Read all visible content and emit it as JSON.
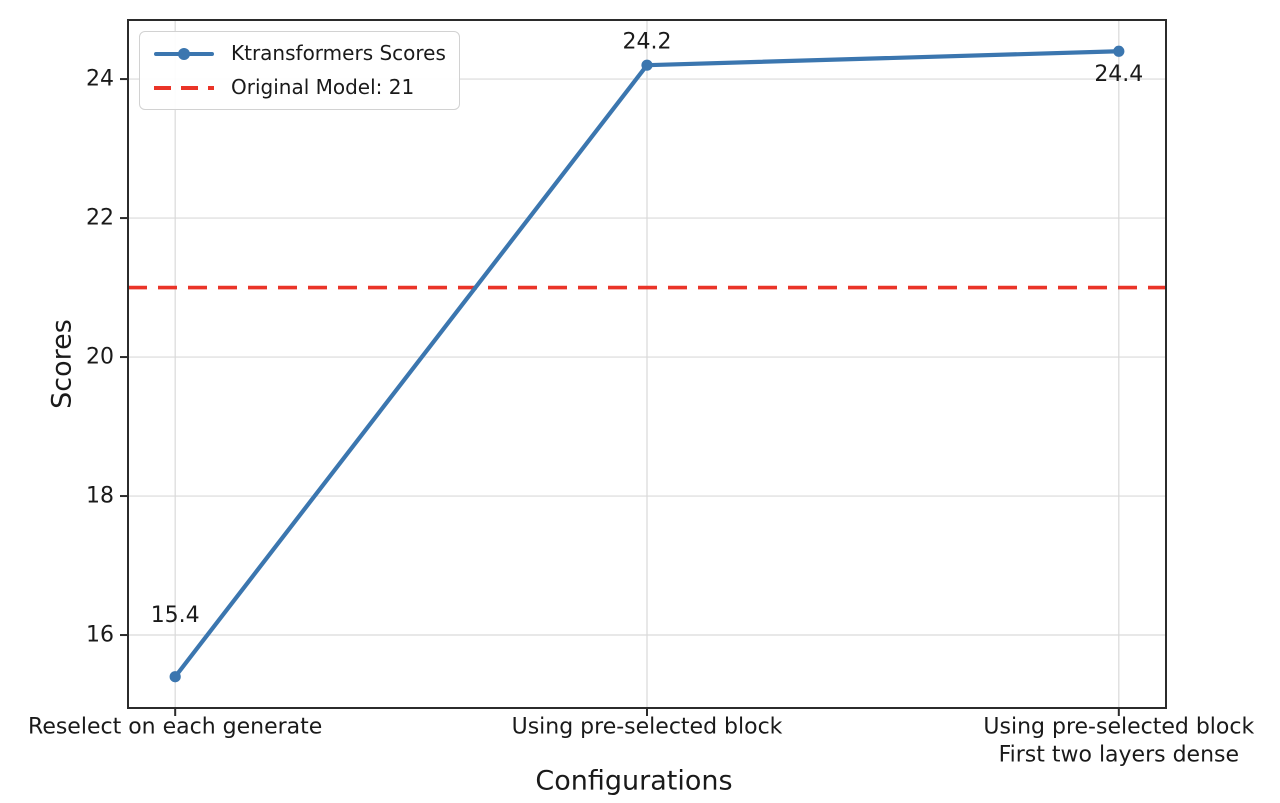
{
  "figure": {
    "background": "#ffffff"
  },
  "chart_data": {
    "type": "line",
    "title": "",
    "xlabel": "Configurations",
    "ylabel": "Scores",
    "categories": [
      "Reselect on each generate",
      "Using pre-selected block",
      "Using pre-selected block\nFirst two layers dense"
    ],
    "series": [
      {
        "name": "Ktransformers Scores",
        "values": [
          15.4,
          24.2,
          24.4
        ],
        "color": "#3b76af",
        "marker": "circle",
        "line_style": "solid"
      }
    ],
    "data_labels": [
      "15.4",
      "24.2",
      "24.4"
    ],
    "reference_line": {
      "label": "Original Model: 21",
      "value": 21,
      "color": "#ea3428",
      "line_style": "dashed"
    },
    "yticks": [
      "16",
      "18",
      "20",
      "22",
      "24"
    ],
    "ytick_values": [
      16,
      18,
      20,
      22,
      24
    ],
    "ylim": [
      14.95,
      24.85
    ],
    "xlim": [
      -0.1,
      2.1
    ],
    "grid": true,
    "legend_position": "upper left",
    "text_color": "#1a1a1a",
    "grid_color": "#d9d9d9",
    "spine_color": "#2b2b2b"
  }
}
